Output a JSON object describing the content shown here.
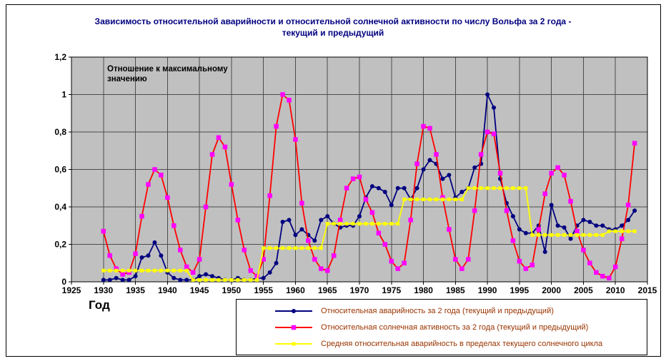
{
  "title": {
    "line1": "Зависимость относительной аварийности и относительной солнечной активности по числу Вольфа за 2 года -",
    "line2": "текущий и предыдущий"
  },
  "annotation": "Отношение к максимальному значению",
  "colors": {
    "plot_bg": "#C0C0C0",
    "grid": "#4D4D4D",
    "axis": "#000000",
    "title_text": "#000080",
    "legend_text": "#993300",
    "series_blue": "#000080",
    "series_red": "#FF0000",
    "series_red_marker": "#FF00FF",
    "series_yellow": "#FFFF00"
  },
  "chart_data": {
    "type": "line",
    "title": "Зависимость относительной аварийности и относительной солнечной активности по числу Вольфа за 2 года - текущий и предыдущий",
    "xlabel": "Год",
    "ylabel": "Отношение к максимальному значению",
    "xlim": [
      1925,
      2015
    ],
    "ylim": [
      0,
      1.2
    ],
    "grid": true,
    "legend_position": "bottom",
    "x_tick_values": [
      1925,
      1930,
      1935,
      1940,
      1945,
      1950,
      1955,
      1960,
      1965,
      1970,
      1975,
      1980,
      1985,
      1990,
      1995,
      2000,
      2005,
      2010,
      2015
    ],
    "x_tick_labels": [
      "1925",
      "1930",
      "1935",
      "1940",
      "1945",
      "1950",
      "1955",
      "1960",
      "1965",
      "1970",
      "1975",
      "1980",
      "1985",
      "1990",
      "1995",
      "2000",
      "2005",
      "2010",
      "2015"
    ],
    "y_tick_values": [
      0,
      0.2,
      0.4,
      0.6,
      0.8,
      1,
      1.2
    ],
    "y_tick_labels": [
      "0",
      "0,2",
      "0,4",
      "0,6",
      "0,8",
      "1",
      "1,2"
    ],
    "years": [
      1930,
      1931,
      1932,
      1933,
      1934,
      1935,
      1936,
      1937,
      1938,
      1939,
      1940,
      1941,
      1942,
      1943,
      1944,
      1945,
      1946,
      1947,
      1948,
      1949,
      1950,
      1951,
      1952,
      1953,
      1954,
      1955,
      1956,
      1957,
      1958,
      1959,
      1960,
      1961,
      1962,
      1963,
      1964,
      1965,
      1966,
      1967,
      1968,
      1969,
      1970,
      1971,
      1972,
      1973,
      1974,
      1975,
      1976,
      1977,
      1978,
      1979,
      1980,
      1981,
      1982,
      1983,
      1984,
      1985,
      1986,
      1987,
      1988,
      1989,
      1990,
      1991,
      1992,
      1993,
      1994,
      1995,
      1996,
      1997,
      1998,
      1999,
      2000,
      2001,
      2002,
      2003,
      2004,
      2005,
      2006,
      2007,
      2008,
      2009,
      2010,
      2011,
      2012,
      2013
    ],
    "series": [
      {
        "name": "Относительная аварийность за 2 года (текущий и предыдущий)",
        "line_color": "#000080",
        "marker": "circle",
        "marker_color": "#000080",
        "marker_size": 6,
        "values": [
          0.01,
          0.01,
          0.02,
          0.01,
          0.01,
          0.03,
          0.13,
          0.14,
          0.21,
          0.14,
          0.05,
          0.02,
          0.01,
          0.01,
          0.01,
          0.03,
          0.04,
          0.03,
          0.02,
          0.01,
          0.01,
          0.02,
          0.01,
          0.01,
          0.02,
          0.02,
          0.05,
          0.1,
          0.32,
          0.33,
          0.25,
          0.28,
          0.25,
          0.22,
          0.33,
          0.35,
          0.31,
          0.29,
          0.3,
          0.3,
          0.35,
          0.45,
          0.51,
          0.5,
          0.48,
          0.41,
          0.5,
          0.5,
          0.44,
          0.5,
          0.6,
          0.65,
          0.63,
          0.55,
          0.57,
          0.45,
          0.48,
          0.5,
          0.61,
          0.63,
          1.0,
          0.93,
          0.55,
          0.42,
          0.35,
          0.28,
          0.26,
          0.26,
          0.3,
          0.16,
          0.41,
          0.3,
          0.29,
          0.23,
          0.3,
          0.33,
          0.32,
          0.3,
          0.3,
          0.28,
          0.28,
          0.3,
          0.33,
          0.38
        ]
      },
      {
        "name": "Относительная солнечная активность за 2 года (текущий и предыдущий)",
        "line_color": "#FF0000",
        "marker": "square",
        "marker_color": "#FF00FF",
        "marker_size": 6.5,
        "values": [
          0.27,
          0.14,
          0.07,
          0.04,
          0.05,
          0.15,
          0.35,
          0.52,
          0.6,
          0.57,
          0.45,
          0.3,
          0.17,
          0.08,
          0.05,
          0.12,
          0.4,
          0.68,
          0.77,
          0.72,
          0.52,
          0.33,
          0.17,
          0.06,
          0.03,
          0.12,
          0.46,
          0.83,
          1.0,
          0.97,
          0.76,
          0.42,
          0.22,
          0.12,
          0.07,
          0.06,
          0.14,
          0.33,
          0.5,
          0.55,
          0.56,
          0.44,
          0.37,
          0.26,
          0.2,
          0.11,
          0.07,
          0.1,
          0.33,
          0.63,
          0.83,
          0.82,
          0.68,
          0.45,
          0.28,
          0.12,
          0.07,
          0.12,
          0.38,
          0.68,
          0.8,
          0.79,
          0.58,
          0.38,
          0.22,
          0.11,
          0.07,
          0.09,
          0.28,
          0.47,
          0.58,
          0.61,
          0.57,
          0.43,
          0.27,
          0.17,
          0.1,
          0.05,
          0.03,
          0.02,
          0.08,
          0.23,
          0.41,
          0.74
        ]
      },
      {
        "name": "Средняя относительная аварийность в пределах текущего солнечного цикла",
        "line_color": "#FFFF00",
        "marker": "square",
        "marker_color": "#FFFF00",
        "marker_size": 5,
        "values": [
          0.06,
          0.06,
          0.06,
          0.06,
          0.06,
          0.06,
          0.06,
          0.06,
          0.06,
          0.06,
          0.06,
          0.06,
          0.06,
          0.06,
          0.01,
          0.01,
          0.01,
          0.01,
          0.01,
          0.01,
          0.01,
          0.01,
          0.01,
          0.01,
          0.01,
          0.18,
          0.18,
          0.18,
          0.18,
          0.18,
          0.18,
          0.18,
          0.18,
          0.18,
          0.18,
          0.31,
          0.31,
          0.31,
          0.31,
          0.31,
          0.31,
          0.31,
          0.31,
          0.31,
          0.31,
          0.31,
          0.31,
          0.44,
          0.44,
          0.44,
          0.44,
          0.44,
          0.44,
          0.44,
          0.44,
          0.44,
          0.44,
          0.5,
          0.5,
          0.5,
          0.5,
          0.5,
          0.5,
          0.5,
          0.5,
          0.5,
          0.5,
          0.25,
          0.25,
          0.25,
          0.25,
          0.25,
          0.25,
          0.25,
          0.25,
          0.25,
          0.25,
          0.25,
          0.25,
          0.27,
          0.27,
          0.27,
          0.27,
          0.27
        ]
      }
    ]
  }
}
